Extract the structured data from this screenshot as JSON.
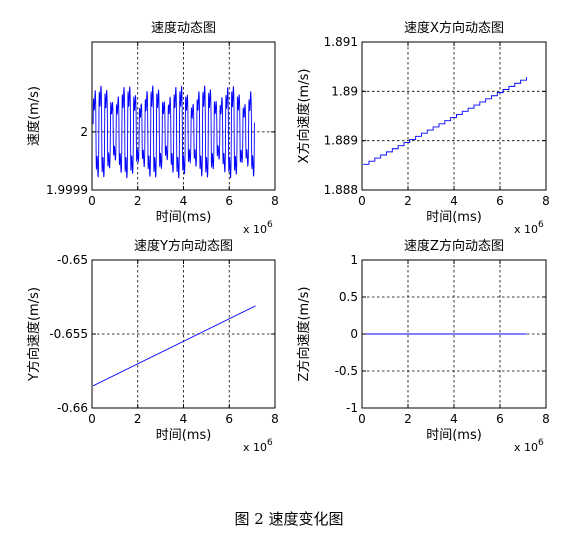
{
  "caption": "图 2 速度变化图",
  "chart_data": [
    {
      "type": "line",
      "title": "速度动态图",
      "xlabel": "时间(ms)",
      "ylabel": "速度(m/s)",
      "x_multiplier": "x 10",
      "x_exponent": "6",
      "xlim": [
        0,
        8
      ],
      "ylim": [
        1.99989,
        2.00017
      ],
      "xticks": [
        0,
        2,
        4,
        6,
        8
      ],
      "xtick_labels": [
        "0",
        "2",
        "4",
        "6",
        "8"
      ],
      "yticks": [
        1.99989,
        2
      ],
      "ytick_labels": [
        "1.9999",
        "2"
      ],
      "grid": true,
      "series": [
        {
          "color": "#0000ff",
          "pattern": "oscillation",
          "x": [
            0.05,
            7.1
          ],
          "baseline": 2.0,
          "amplitude": 8e-05,
          "cycles": 28
        }
      ]
    },
    {
      "type": "line",
      "title": "速度X方向动态图",
      "xlabel": "时间(ms)",
      "ylabel": "X方向速度(m/s)",
      "x_multiplier": "x 10",
      "x_exponent": "6",
      "xlim": [
        0,
        8
      ],
      "ylim": [
        1.888,
        1.891
      ],
      "xticks": [
        0,
        2,
        4,
        6,
        8
      ],
      "xtick_labels": [
        "0",
        "2",
        "4",
        "6",
        "8"
      ],
      "yticks": [
        1.888,
        1.889,
        1.89,
        1.891
      ],
      "ytick_labels": [
        "1.888",
        "1.889",
        "1.89",
        "1.891"
      ],
      "grid": true,
      "series": [
        {
          "color": "#0000ff",
          "pattern": "staircase",
          "x": [
            0.05,
            7.15
          ],
          "y": [
            1.88852,
            1.89029
          ],
          "steps": 28
        }
      ]
    },
    {
      "type": "line",
      "title": "速度Y方向动态图",
      "xlabel": "时间(ms)",
      "ylabel": "Y方向速度(m/s)",
      "x_multiplier": "x 10",
      "x_exponent": "6",
      "xlim": [
        0,
        8
      ],
      "ylim": [
        -0.66,
        -0.65
      ],
      "xticks": [
        0,
        2,
        4,
        6,
        8
      ],
      "xtick_labels": [
        "0",
        "2",
        "4",
        "6",
        "8"
      ],
      "yticks": [
        -0.66,
        -0.655,
        -0.65
      ],
      "ytick_labels": [
        "-0.66",
        "-0.655",
        "-0.65"
      ],
      "grid": true,
      "series": [
        {
          "color": "#0000ff",
          "pattern": "linear",
          "x": [
            0.05,
            7.15
          ],
          "y": [
            -0.6585,
            -0.6531
          ]
        }
      ]
    },
    {
      "type": "line",
      "title": "速度Z方向动态图",
      "xlabel": "时间(ms)",
      "ylabel": "Z方向速度(m/s)",
      "x_multiplier": "x 10",
      "x_exponent": "6",
      "xlim": [
        0,
        8
      ],
      "ylim": [
        -1,
        1
      ],
      "xticks": [
        0,
        2,
        4,
        6,
        8
      ],
      "xtick_labels": [
        "0",
        "2",
        "4",
        "6",
        "8"
      ],
      "yticks": [
        -1,
        -0.5,
        0,
        0.5,
        1
      ],
      "ytick_labels": [
        "-1",
        "-0.5",
        "0",
        "0.5",
        "1"
      ],
      "grid": true,
      "series": [
        {
          "color": "#0000ff",
          "pattern": "linear",
          "x": [
            0.05,
            7.15
          ],
          "y": [
            0,
            0
          ]
        }
      ]
    }
  ]
}
